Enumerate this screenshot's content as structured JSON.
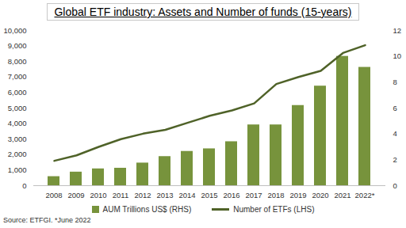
{
  "chart_data": {
    "type": "bar",
    "title": "Global ETF industry: Assets and Number of funds (15-years)",
    "caption": "Source: ETFGI. *June 2022",
    "categories": [
      "2008",
      "2009",
      "2010",
      "2011",
      "2012",
      "2013",
      "2014",
      "2015",
      "2016",
      "2017",
      "2018",
      "2019",
      "2020",
      "2021",
      "2022*"
    ],
    "series": [
      {
        "name": "AUM Trillions US$ (RHS)",
        "type": "bar",
        "axis": "y2",
        "color": "#77933c",
        "values": [
          0.7,
          1.05,
          1.3,
          1.35,
          1.75,
          2.25,
          2.65,
          2.85,
          3.4,
          4.7,
          4.7,
          6.2,
          7.7,
          10.0,
          9.15
        ]
      },
      {
        "name": "Number of ETFs (LHS)",
        "type": "line",
        "color": "#4f6228",
        "values": [
          1600,
          1950,
          2500,
          3000,
          3350,
          3600,
          4050,
          4500,
          4850,
          5300,
          6550,
          7000,
          7400,
          8550,
          9050
        ]
      }
    ],
    "ylim": [
      0,
      10000
    ],
    "yticks": [
      0,
      {
        "value": 1000,
        "label": "1,000"
      },
      {
        "value": 2000,
        "label": "2,000"
      },
      {
        "value": 3000,
        "label": "3,000"
      },
      {
        "value": 4000,
        "label": "4,000"
      },
      {
        "value": 5000,
        "label": "5,000"
      },
      {
        "value": 6000,
        "label": "6,000"
      },
      {
        "value": 7000,
        "label": "7,000"
      },
      {
        "value": 8000,
        "label": "8,000"
      },
      {
        "value": 9000,
        "label": "9,000"
      },
      {
        "value": 10000,
        "label": "10,000"
      }
    ],
    "y2lim": [
      0,
      12
    ],
    "y2ticks": [
      0,
      2,
      4,
      6,
      8,
      10,
      12
    ],
    "legend": "bottom"
  }
}
